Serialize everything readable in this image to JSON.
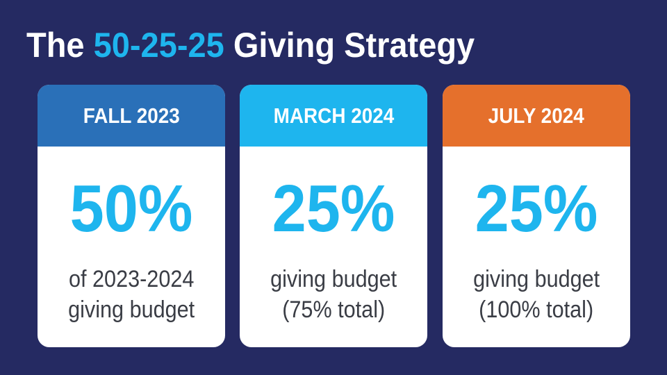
{
  "title": {
    "prefix": "The ",
    "highlight": "50-25-25",
    "suffix": " Giving Strategy",
    "highlight_color": "#1eb5ee"
  },
  "cards": [
    {
      "header": "FALL 2023",
      "header_color": "#2a70b8",
      "percent": "50%",
      "line1": "of 2023-2024",
      "line2": "giving budget"
    },
    {
      "header": "MARCH 2024",
      "header_color": "#1eb5ee",
      "percent": "25%",
      "line1": "giving budget",
      "line2": "(75% total)"
    },
    {
      "header": "JULY 2024",
      "header_color": "#e5702c",
      "percent": "25%",
      "line1": "giving budget",
      "line2": "(100% total)"
    }
  ],
  "colors": {
    "background": "#252a62",
    "card": "#ffffff",
    "percent": "#1eb5ee",
    "text": "#3a3d45"
  }
}
